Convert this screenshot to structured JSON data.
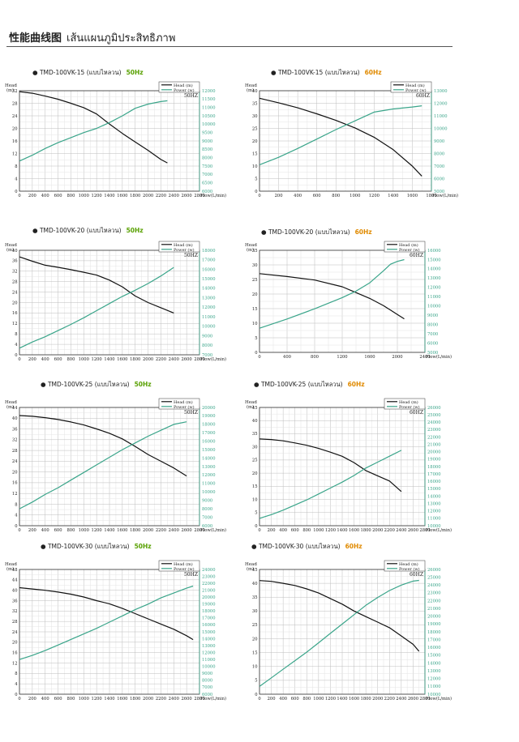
{
  "page": {
    "title_cn": "性能曲线图",
    "title_th": "เส้นแผนภูมิประสิทธิภาพ"
  },
  "colors": {
    "head": "#111111",
    "power": "#3aa58a",
    "grid": "#bdbdbd",
    "hz50": "#58a000",
    "hz60": "#e08a00"
  },
  "chart_data": [
    {
      "type": "line",
      "model": "TMD-100VK-15",
      "variant": "(แบบไหลวน)",
      "freq": "50Hz",
      "box_label": "50HZ",
      "xlabel": "Flow(L/min)",
      "ylabel_left": "Head (m)",
      "legend": [
        "Head (m)",
        "Power (w)"
      ],
      "xlim": [
        0,
        2800
      ],
      "xticks": [
        0,
        200,
        400,
        600,
        800,
        1000,
        1200,
        1400,
        1600,
        1800,
        2000,
        2200,
        2400,
        2600,
        2800
      ],
      "ylim": [
        0,
        32
      ],
      "yticks": [
        0,
        4,
        8,
        12,
        16,
        20,
        24,
        28,
        32
      ],
      "y2lim": [
        6000,
        12000
      ],
      "y2ticks": [
        6000,
        6500,
        7000,
        7500,
        8000,
        8500,
        9000,
        9500,
        10000,
        10500,
        11000,
        11500,
        12000
      ],
      "series": [
        {
          "name": "Head (m)",
          "axis": "left",
          "x": [
            0,
            200,
            400,
            600,
            800,
            1000,
            1200,
            1400,
            1600,
            1800,
            2000,
            2200,
            2300
          ],
          "y": [
            31.7,
            31.2,
            30.3,
            29.3,
            28,
            26.6,
            24.6,
            21.4,
            18.4,
            15.7,
            13,
            10.1,
            9
          ]
        },
        {
          "name": "Power (w)",
          "axis": "right",
          "x": [
            0,
            200,
            400,
            600,
            800,
            1000,
            1200,
            1400,
            1600,
            1800,
            2000,
            2200,
            2300
          ],
          "y": [
            7800,
            8150,
            8550,
            8900,
            9200,
            9500,
            9750,
            10100,
            10500,
            10950,
            11200,
            11350,
            11400
          ]
        }
      ]
    },
    {
      "type": "line",
      "model": "TMD-100VK-15",
      "variant": "(แบบไหลวน)",
      "freq": "60Hz",
      "box_label": "60HZ",
      "xlabel": "Flow(L/min)",
      "ylabel_left": "Head (m)",
      "legend": [
        "Head (m)",
        "Power (w)"
      ],
      "xlim": [
        0,
        1800
      ],
      "xticks": [
        0,
        200,
        400,
        600,
        800,
        1000,
        1200,
        1400,
        1600,
        1800
      ],
      "ylim": [
        0,
        40
      ],
      "yticks": [
        0,
        5,
        10,
        15,
        20,
        25,
        30,
        35,
        40
      ],
      "y2lim": [
        5000,
        13000
      ],
      "y2ticks": [
        5000,
        6000,
        7000,
        8000,
        9000,
        10000,
        11000,
        12000,
        13000
      ],
      "series": [
        {
          "name": "Head (m)",
          "axis": "left",
          "x": [
            0,
            200,
            400,
            600,
            800,
            1000,
            1200,
            1400,
            1600,
            1700
          ],
          "y": [
            37,
            35.2,
            33.2,
            30.8,
            28.2,
            25.2,
            21.5,
            16.5,
            10,
            6
          ]
        },
        {
          "name": "Power (w)",
          "axis": "right",
          "x": [
            0,
            200,
            400,
            600,
            800,
            1000,
            1200,
            1400,
            1600,
            1700
          ],
          "y": [
            7100,
            7700,
            8400,
            9150,
            9900,
            10600,
            11300,
            11550,
            11700,
            11800
          ]
        }
      ]
    },
    {
      "type": "line",
      "model": "TMD-100VK-20",
      "variant": "(แบบไหลวน)",
      "freq": "50Hz",
      "box_label": "50HZ",
      "xlabel": "Flow(L/min)",
      "ylabel_left": "Head (m)",
      "legend": [
        "Head (m)",
        "Power (w)"
      ],
      "xlim": [
        0,
        2800
      ],
      "xticks": [
        0,
        200,
        400,
        600,
        800,
        1000,
        1200,
        1400,
        1600,
        1800,
        2000,
        2200,
        2400,
        2600,
        2800
      ],
      "ylim": [
        0,
        40
      ],
      "yticks": [
        0,
        4,
        8,
        12,
        16,
        20,
        24,
        28,
        32,
        36,
        40
      ],
      "y2lim": [
        7000,
        18000
      ],
      "y2ticks": [
        7000,
        8000,
        9000,
        10000,
        11000,
        12000,
        13000,
        14000,
        15000,
        16000,
        17000,
        18000
      ],
      "series": [
        {
          "name": "Head (m)",
          "axis": "left",
          "x": [
            0,
            200,
            400,
            600,
            800,
            1000,
            1200,
            1400,
            1600,
            1800,
            2000,
            2200,
            2400
          ],
          "y": [
            37.5,
            35.8,
            34.3,
            33.5,
            32.6,
            31.6,
            30.5,
            28.6,
            26,
            22.5,
            20,
            18,
            16
          ]
        },
        {
          "name": "Power (w)",
          "axis": "right",
          "x": [
            0,
            200,
            400,
            600,
            800,
            1000,
            1200,
            1400,
            1600,
            1800,
            2000,
            2200,
            2400
          ],
          "y": [
            7700,
            8350,
            8900,
            9550,
            10200,
            10900,
            11650,
            12400,
            13150,
            13800,
            14500,
            15300,
            16200
          ]
        }
      ]
    },
    {
      "type": "line",
      "model": "TMD-100VK-20",
      "variant": "(แบบไหลวน)",
      "freq": "60Hz",
      "box_label": "60HZ",
      "xlabel": "Flow(L/min)",
      "ylabel_left": "Head (m)",
      "legend": [
        "Head (m)",
        "Power (w)"
      ],
      "xlim": [
        0,
        2400
      ],
      "xticks": [
        0,
        400,
        800,
        1200,
        1600,
        2000,
        2400
      ],
      "ylim": [
        0,
        35
      ],
      "yticks": [
        0,
        5,
        10,
        15,
        20,
        25,
        30,
        35
      ],
      "y2lim": [
        5000,
        16000
      ],
      "y2ticks": [
        5000,
        6000,
        7000,
        8000,
        9000,
        10000,
        11000,
        12000,
        13000,
        14000,
        15000,
        16000
      ],
      "series": [
        {
          "name": "Head (m)",
          "axis": "left",
          "x": [
            0,
            400,
            800,
            1200,
            1400,
            1600,
            1800,
            1900,
            2000,
            2100
          ],
          "y": [
            27,
            26,
            24.8,
            22.5,
            20.5,
            18.5,
            16,
            14.5,
            13,
            11.5
          ]
        },
        {
          "name": "Power (w)",
          "axis": "right",
          "x": [
            0,
            400,
            800,
            1200,
            1400,
            1600,
            1800,
            1900,
            2000,
            2100
          ],
          "y": [
            7600,
            8600,
            9700,
            10900,
            11600,
            12500,
            13800,
            14500,
            14800,
            15000
          ]
        }
      ]
    },
    {
      "type": "line",
      "model": "TMD-100VK-25",
      "variant": "(แบบไหลวน)",
      "freq": "50Hz",
      "box_label": "50HZ",
      "xlabel": "Flow(L/min)",
      "ylabel_left": "Head (m)",
      "legend": [
        "Head (m)",
        "Power (w)"
      ],
      "xlim": [
        0,
        2800
      ],
      "xticks": [
        0,
        200,
        400,
        600,
        800,
        1000,
        1200,
        1400,
        1600,
        1800,
        2000,
        2200,
        2400,
        2600,
        2800
      ],
      "ylim": [
        0,
        44
      ],
      "yticks": [
        0,
        4,
        8,
        12,
        16,
        20,
        24,
        28,
        32,
        36,
        40,
        44
      ],
      "y2lim": [
        6000,
        20000
      ],
      "y2ticks": [
        6000,
        7000,
        8000,
        9000,
        10000,
        11000,
        12000,
        13000,
        14000,
        15000,
        16000,
        17000,
        18000,
        19000,
        20000
      ],
      "series": [
        {
          "name": "Head (m)",
          "axis": "left",
          "x": [
            0,
            200,
            400,
            600,
            800,
            1000,
            1200,
            1400,
            1600,
            1800,
            2000,
            2200,
            2400,
            2600
          ],
          "y": [
            41,
            40.7,
            40.2,
            39.5,
            38.6,
            37.5,
            36,
            34.4,
            32.3,
            29.5,
            26.5,
            24,
            21.5,
            18.5
          ]
        },
        {
          "name": "Power (w)",
          "axis": "right",
          "x": [
            0,
            200,
            400,
            600,
            800,
            1000,
            1200,
            1400,
            1600,
            1800,
            2000,
            2200,
            2400,
            2600
          ],
          "y": [
            8000,
            8800,
            9700,
            10500,
            11400,
            12300,
            13200,
            14100,
            15000,
            15800,
            16600,
            17300,
            18000,
            18300
          ]
        }
      ]
    },
    {
      "type": "line",
      "model": "TMD-100VK-25",
      "variant": "(แบบไหลวน)",
      "freq": "60Hz",
      "box_label": "60HZ",
      "xlabel": "Flow(L/min)",
      "ylabel_left": "Head (m)",
      "legend": [
        "Head (m)",
        "Power (w)"
      ],
      "xlim": [
        0,
        2800
      ],
      "xticks": [
        0,
        200,
        400,
        600,
        800,
        1000,
        1200,
        1400,
        1600,
        1800,
        2000,
        2200,
        2400,
        2600,
        2800
      ],
      "ylim": [
        0,
        45
      ],
      "yticks": [
        0,
        5,
        10,
        15,
        20,
        25,
        30,
        35,
        40,
        45
      ],
      "y2lim": [
        10000,
        26000
      ],
      "y2ticks": [
        10000,
        11000,
        12000,
        13000,
        14000,
        15000,
        16000,
        17000,
        18000,
        19000,
        20000,
        21000,
        22000,
        23000,
        24000,
        25000,
        26000
      ],
      "series": [
        {
          "name": "Head (m)",
          "axis": "left",
          "x": [
            0,
            200,
            400,
            600,
            800,
            1000,
            1200,
            1400,
            1600,
            1800,
            2000,
            2200,
            2400
          ],
          "y": [
            33,
            32.8,
            32.3,
            31.5,
            30.6,
            29.4,
            28,
            26.4,
            24,
            21,
            19,
            17,
            13
          ]
        },
        {
          "name": "Power (w)",
          "axis": "right",
          "x": [
            0,
            200,
            400,
            600,
            800,
            1000,
            1200,
            1400,
            1600,
            1800,
            2000,
            2200,
            2400
          ],
          "y": [
            11000,
            11500,
            12100,
            12800,
            13500,
            14300,
            15100,
            15900,
            16800,
            17800,
            18600,
            19400,
            20200
          ]
        }
      ]
    },
    {
      "type": "line",
      "model": "TMD-100VK-30",
      "variant": "(แบบไหลวน)",
      "freq": "50Hz",
      "box_label": "50HZ",
      "xlabel": "Flow(L/min)",
      "ylabel_left": "Head (m)",
      "legend": [
        "Head (m)",
        "Power (w)"
      ],
      "xlim": [
        0,
        2800
      ],
      "xticks": [
        0,
        200,
        400,
        600,
        800,
        1000,
        1200,
        1400,
        1600,
        1800,
        2000,
        2200,
        2400,
        2600,
        2800
      ],
      "ylim": [
        0,
        48
      ],
      "yticks": [
        0,
        4,
        8,
        12,
        16,
        20,
        24,
        28,
        32,
        36,
        40,
        44,
        48
      ],
      "y2lim": [
        6000,
        24000
      ],
      "y2ticks": [
        6000,
        7000,
        8000,
        9000,
        10000,
        11000,
        12000,
        13000,
        14000,
        15000,
        16000,
        17000,
        18000,
        19000,
        20000,
        21000,
        22000,
        23000,
        24000
      ],
      "series": [
        {
          "name": "Head (m)",
          "axis": "left",
          "x": [
            0,
            200,
            400,
            600,
            800,
            1000,
            1200,
            1400,
            1600,
            1800,
            2000,
            2200,
            2400,
            2600,
            2700
          ],
          "y": [
            41,
            40.5,
            40,
            39.3,
            38.5,
            37.4,
            36,
            34.8,
            33,
            31,
            29,
            27,
            25,
            22.5,
            21
          ]
        },
        {
          "name": "Power (w)",
          "axis": "right",
          "x": [
            0,
            200,
            400,
            600,
            800,
            1000,
            1200,
            1400,
            1600,
            1800,
            2000,
            2200,
            2400,
            2600,
            2700
          ],
          "y": [
            11000,
            11600,
            12300,
            13100,
            13900,
            14700,
            15500,
            16400,
            17300,
            18200,
            19000,
            19900,
            20600,
            21300,
            21600
          ]
        }
      ]
    },
    {
      "type": "line",
      "model": "TMD-100VK-30",
      "variant": "(แบบไหลวน)",
      "freq": "60Hz",
      "box_label": "60HZ",
      "xlabel": "Flow(L/min)",
      "ylabel_left": "Head (m)",
      "legend": [
        "Head (m)",
        "Power (w)"
      ],
      "xlim": [
        0,
        2800
      ],
      "xticks": [
        0,
        200,
        400,
        600,
        800,
        1000,
        1200,
        1400,
        1600,
        1800,
        2000,
        2200,
        2400,
        2600,
        2800
      ],
      "ylim": [
        0,
        45
      ],
      "yticks": [
        0,
        5,
        10,
        15,
        20,
        25,
        30,
        35,
        40,
        45
      ],
      "y2lim": [
        10000,
        26000
      ],
      "y2ticks": [
        10000,
        11000,
        12000,
        13000,
        14000,
        15000,
        16000,
        17000,
        18000,
        19000,
        20000,
        21000,
        22000,
        23000,
        24000,
        25000,
        26000
      ],
      "series": [
        {
          "name": "Head (m)",
          "axis": "left",
          "x": [
            0,
            200,
            400,
            600,
            800,
            1000,
            1200,
            1400,
            1600,
            1800,
            2000,
            2200,
            2400,
            2600,
            2700
          ],
          "y": [
            41,
            40.7,
            40,
            39.2,
            38,
            36.5,
            34.5,
            32.5,
            30,
            28,
            26,
            24,
            21,
            18,
            15.5
          ]
        },
        {
          "name": "Power (w)",
          "axis": "right",
          "x": [
            0,
            200,
            400,
            600,
            800,
            1000,
            1200,
            1400,
            1600,
            1800,
            2000,
            2200,
            2400,
            2600,
            2700
          ],
          "y": [
            11000,
            12100,
            13200,
            14300,
            15400,
            16600,
            17800,
            19000,
            20200,
            21400,
            22400,
            23300,
            24000,
            24500,
            24600
          ]
        }
      ]
    }
  ]
}
